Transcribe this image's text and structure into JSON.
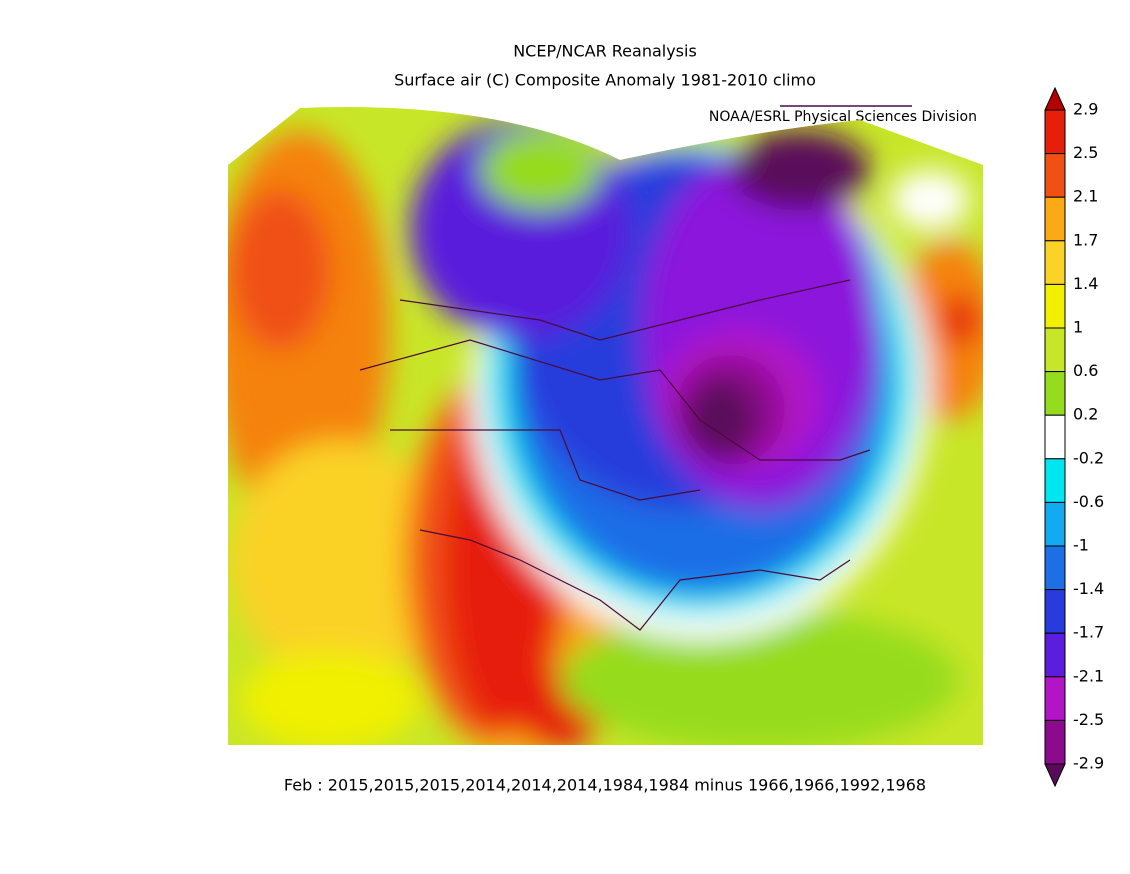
{
  "title": "NCEP/NCAR Reanalysis",
  "subtitle": "Surface air (C) Composite Anomaly 1981-2010 climo",
  "attribution": "NOAA/ESRL Physical Sciences Division",
  "footer": "Feb : 2015,2015,2015,2014,2014,2014,1984,1984 minus 1966,1966,1992,1968",
  "colorbar": {
    "labels": [
      2.9,
      2.5,
      2.1,
      1.7,
      1.4,
      1,
      0.6,
      0.2,
      -0.2,
      -0.6,
      -1,
      -1.4,
      -1.7,
      -2.1,
      -2.5,
      -2.9
    ],
    "colors": [
      "#b40000",
      "#e61e0a",
      "#f05014",
      "#f5820a",
      "#faaa14",
      "#fad228",
      "#f0f000",
      "#c8e628",
      "#96dc1e",
      "#3cc832",
      "#ffffff",
      "#00e6f0",
      "#14aaf0",
      "#1e6ee6",
      "#283cdc",
      "#5a1edc",
      "#8c14dc",
      "#b414c8",
      "#8c0a8c",
      "#5a0a5a"
    ]
  }
}
